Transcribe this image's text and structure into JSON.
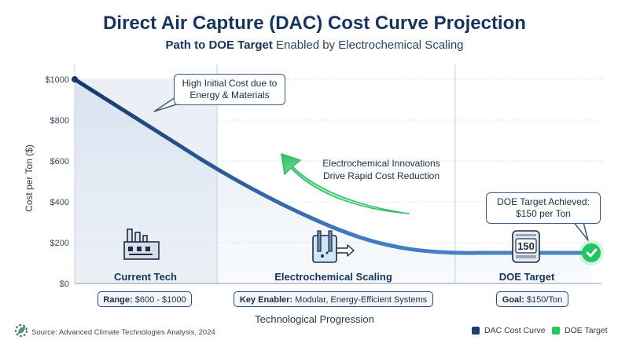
{
  "header": {
    "title": "Direct Air Capture (DAC) Cost Curve Projection",
    "subtitle_bold": "Path to DOE Target",
    "subtitle_rest": " Enabled by Electrochemical Scaling"
  },
  "phases": [
    {
      "name": "Current Tech",
      "pill_bold": "Range:",
      "pill_text": " $600 - $1000",
      "icon": "factory-icon"
    },
    {
      "name": "Electrochemical Scaling",
      "pill_bold": "Key Enabler:",
      "pill_text": " Modular, Energy-Efficient Systems",
      "icon": "electrochemical-cell-icon"
    },
    {
      "name": "DOE Target",
      "pill_bold": "Goal:",
      "pill_text": " $150/Ton",
      "icon": "dac-unit-icon",
      "icon_text": "150"
    }
  ],
  "annotations": {
    "high_cost": "High Initial Cost due to Energy & Materials",
    "innovation_line1": "Electrochemical Innovations",
    "innovation_line2": "Drive Rapid Cost Reduction",
    "target_line1": "DOE Target Achieved:",
    "target_line2": "$150 per Ton"
  },
  "chart_data": {
    "type": "line",
    "title": "Direct Air Capture (DAC) Cost Curve Projection",
    "subtitle": "Path to DOE Target Enabled by Electrochemical Scaling",
    "xlabel": "Technological Progression",
    "ylabel": "Cost per Ton ($)",
    "ylim": [
      0,
      1000
    ],
    "yticks": [
      "$0",
      "$200",
      "$400",
      "$600",
      "$800",
      "$1000"
    ],
    "ytick_values": [
      0,
      200,
      400,
      600,
      800,
      1000
    ],
    "x_range": [
      0,
      1
    ],
    "series": [
      {
        "name": "DAC Cost Curve",
        "color": "#1d3f73",
        "x": [
          0,
          0.05,
          0.1,
          0.15,
          0.2,
          0.25,
          0.3,
          0.35,
          0.4,
          0.45,
          0.5,
          0.55,
          0.6,
          0.65,
          0.7,
          0.75,
          0.8,
          0.85,
          0.9,
          0.95,
          1.0
        ],
        "y": [
          1000,
          920,
          840,
          760,
          680,
          600,
          525,
          455,
          390,
          330,
          275,
          228,
          192,
          168,
          155,
          150,
          150,
          150,
          150,
          150,
          150
        ]
      }
    ],
    "target": {
      "name": "DOE Target",
      "color": "#22c55e",
      "value": 150
    },
    "grid": true
  },
  "legend": {
    "items": [
      {
        "label": "DAC Cost Curve",
        "color": "#1d3f73"
      },
      {
        "label": "DOE Target",
        "color": "#22c55e"
      }
    ]
  },
  "source": "Source: Advanced Climate Technologies Analysis, 2024"
}
